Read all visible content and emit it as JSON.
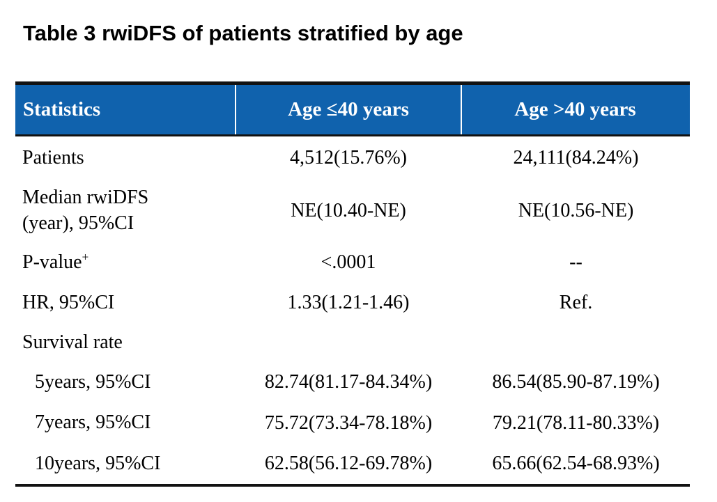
{
  "title": "Table 3 rwiDFS of patients stratified by age",
  "colors": {
    "header_bg": "#1062AD",
    "header_text": "#FFFFFF",
    "body_text": "#000000",
    "border": "#121212"
  },
  "table": {
    "columns": [
      "Statistics",
      "Age ≤40 years",
      "Age >40 years"
    ],
    "rows": [
      {
        "label": "Patients",
        "col1": "4,512(15.76%)",
        "col2": "24,111(84.24%)"
      },
      {
        "label_line1": "Median rwiDFS",
        "label_line2": "(year), 95%CI",
        "col1": "NE(10.40-NE)",
        "col2": "NE(10.56-NE)"
      },
      {
        "label": "P-value",
        "label_sup": "+",
        "col1": "<.0001",
        "col2": "--"
      },
      {
        "label": "HR, 95%CI",
        "col1": "1.33(1.21-1.46)",
        "col2": "Ref."
      },
      {
        "label": "Survival rate",
        "col1": "",
        "col2": ""
      },
      {
        "label": "5years, 95%CI",
        "col1": "82.74(81.17-84.34%)",
        "col2": "86.54(85.90-87.19%)"
      },
      {
        "label": "7years, 95%CI",
        "col1": "75.72(73.34-78.18%)",
        "col2": "79.21(78.11-80.33%)"
      },
      {
        "label": "10years, 95%CI",
        "col1": "62.58(56.12-69.78%)",
        "col2": "65.66(62.54-68.93%)"
      }
    ]
  }
}
